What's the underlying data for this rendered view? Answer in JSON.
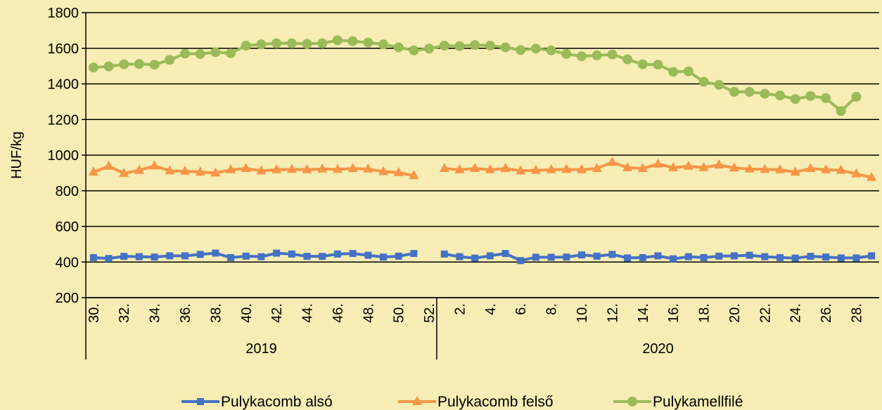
{
  "chart_data": {
    "type": "line",
    "ylabel": "HUF/kg",
    "ylim": [
      200,
      1800
    ],
    "yticks": [
      200,
      400,
      600,
      800,
      1000,
      1200,
      1400,
      1600,
      1800
    ],
    "grid": "horizontal",
    "legend_position": "bottom",
    "x": [
      "30.",
      "31.",
      "32.",
      "33.",
      "34.",
      "35.",
      "36.",
      "37.",
      "38.",
      "39.",
      "40.",
      "41.",
      "42.",
      "43.",
      "44.",
      "45.",
      "46.",
      "47.",
      "48.",
      "49.",
      "50.",
      "51.",
      "52.",
      "1.",
      "2.",
      "3.",
      "4.",
      "5.",
      "6.",
      "7.",
      "8.",
      "9.",
      "10.",
      "11.",
      "12.",
      "13.",
      "14.",
      "15.",
      "16.",
      "17.",
      "18.",
      "19.",
      "20.",
      "21.",
      "22.",
      "23.",
      "24.",
      "25.",
      "26.",
      "27.",
      "28.",
      "29."
    ],
    "x_tick_labels": [
      "30.",
      "32.",
      "34.",
      "36.",
      "38.",
      "40.",
      "42.",
      "44.",
      "46.",
      "48.",
      "50.",
      "52.",
      "2.",
      "4.",
      "6.",
      "8.",
      "10.",
      "12.",
      "14.",
      "16.",
      "18.",
      "20.",
      "22.",
      "24.",
      "26.",
      "28."
    ],
    "groups": [
      {
        "label": "2019",
        "start": 0,
        "end": 23
      },
      {
        "label": "2020",
        "start": 23,
        "end": 52
      }
    ],
    "series": [
      {
        "name": "Pulykacomb alsó",
        "color": "#4472C4",
        "marker": "square",
        "values": [
          425,
          420,
          432,
          430,
          428,
          435,
          435,
          443,
          450,
          425,
          433,
          430,
          450,
          445,
          432,
          432,
          445,
          448,
          438,
          428,
          433,
          448,
          null,
          445,
          430,
          422,
          435,
          448,
          408,
          427,
          427,
          428,
          440,
          433,
          443,
          423,
          425,
          435,
          418,
          430,
          425,
          433,
          435,
          438,
          430,
          425,
          422,
          432,
          428,
          423,
          423,
          435
        ]
      },
      {
        "name": "Pulykacomb felső",
        "color": "#F79646",
        "marker": "triangle",
        "values": [
          905,
          938,
          898,
          915,
          940,
          912,
          910,
          905,
          900,
          918,
          925,
          912,
          918,
          920,
          918,
          922,
          920,
          925,
          922,
          908,
          902,
          885,
          null,
          925,
          918,
          925,
          918,
          925,
          912,
          915,
          918,
          920,
          918,
          925,
          960,
          930,
          925,
          950,
          930,
          938,
          930,
          945,
          928,
          922,
          920,
          918,
          905,
          925,
          918,
          915,
          895,
          875
        ]
      },
      {
        "name": "Pulykamellfilé",
        "color": "#9BBB59",
        "marker": "circle",
        "values": [
          1492,
          1498,
          1510,
          1512,
          1508,
          1535,
          1570,
          1568,
          1578,
          1572,
          1615,
          1622,
          1628,
          1628,
          1625,
          1628,
          1645,
          1640,
          1632,
          1622,
          1605,
          1588,
          1598,
          1615,
          1612,
          1618,
          1615,
          1605,
          1590,
          1598,
          1588,
          1568,
          1555,
          1560,
          1565,
          1538,
          1510,
          1508,
          1468,
          1470,
          1412,
          1395,
          1355,
          1355,
          1345,
          1335,
          1315,
          1332,
          1320,
          1248,
          1328,
          null
        ]
      }
    ]
  }
}
